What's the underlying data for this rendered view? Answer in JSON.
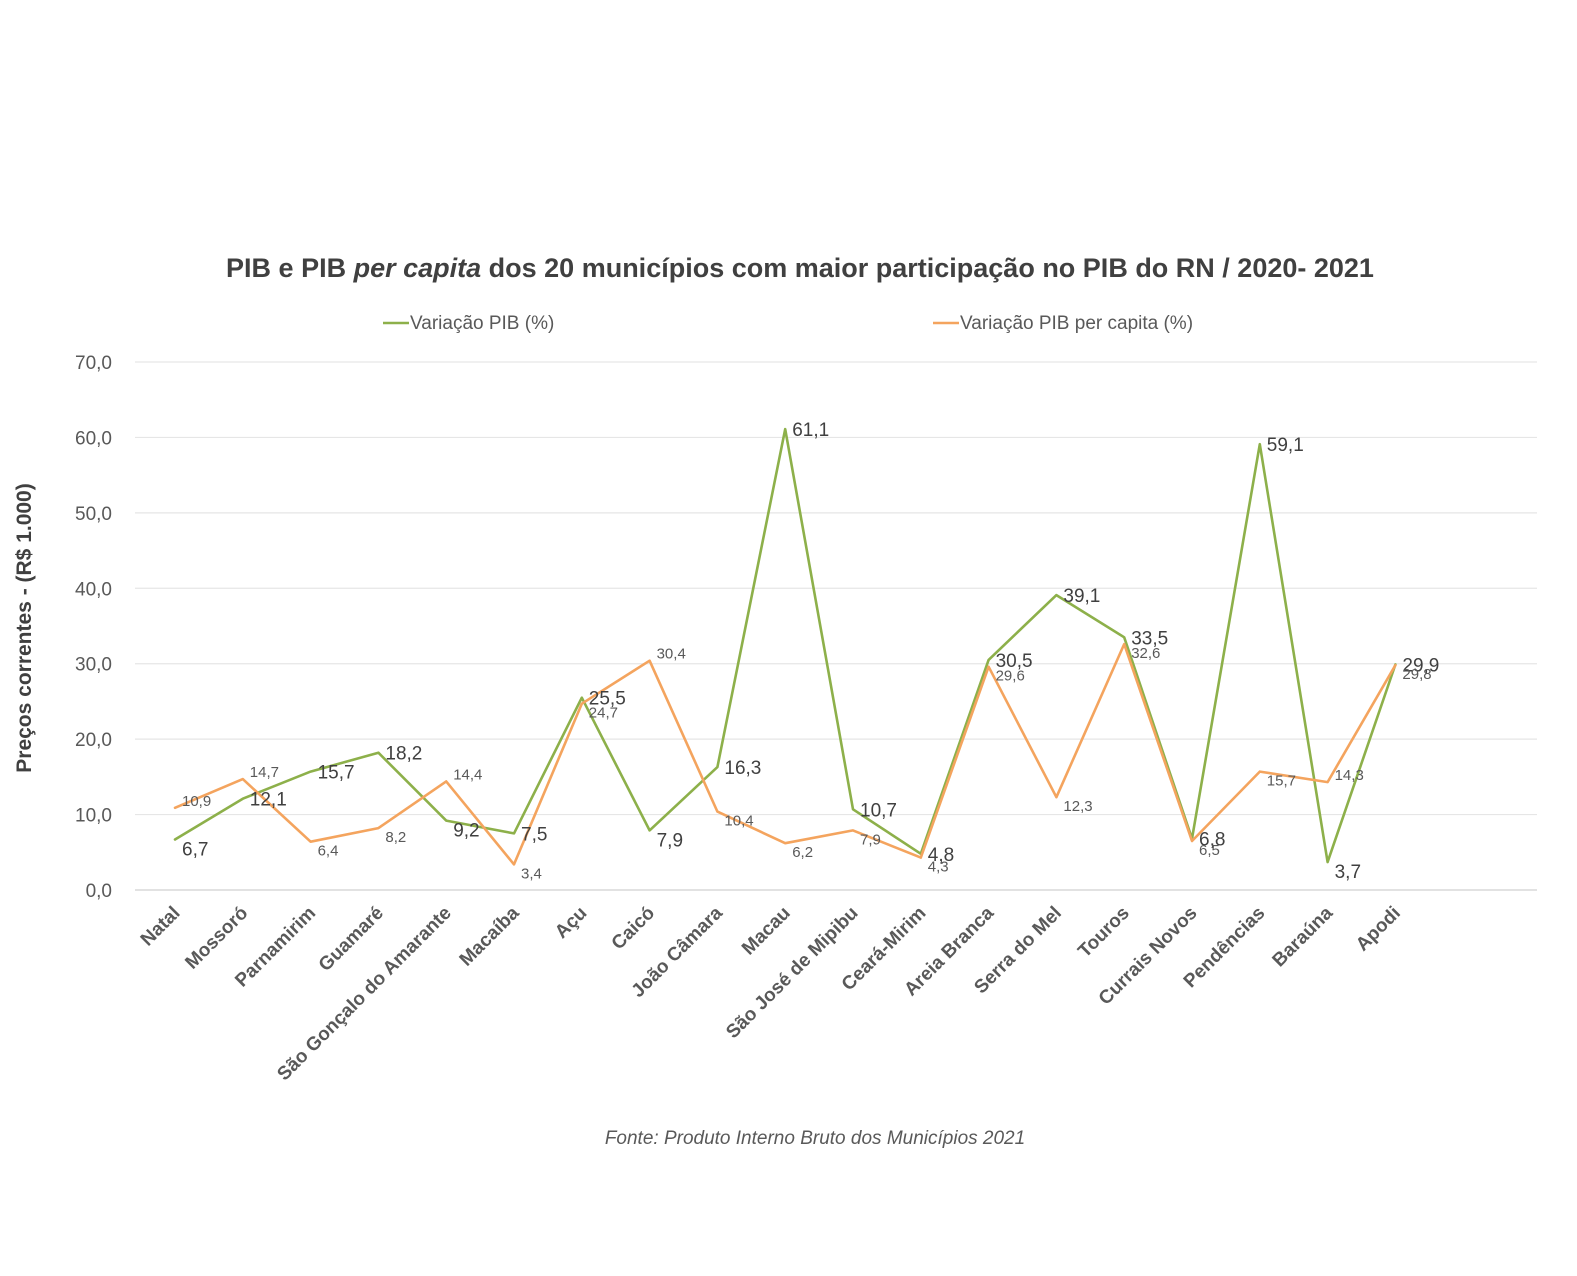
{
  "chart_data": {
    "type": "line",
    "title": {
      "part1": "PIB  e PIB ",
      "italic": "per capita",
      "part2": "  dos 20 municípios com maior participação no PIB do RN / 2020- 2021"
    },
    "ylabel": "Preços correntes - (R$ 1.000)",
    "ylim": [
      0,
      70
    ],
    "yticks": [
      "0,0",
      "10,0",
      "20,0",
      "30,0",
      "40,0",
      "50,0",
      "60,0",
      "70,0"
    ],
    "grid": true,
    "legend_position": "top",
    "categories": [
      "Natal",
      "Mossoró",
      "Parnamirim",
      "Guamaré",
      "São Gonçalo do Amarante",
      "Macaíba",
      "Açu",
      "Caicó",
      "João Câmara",
      "Macau",
      "São José de Mipibu",
      "Ceará-Mirim",
      "Areia Branca",
      "Serra do Mel",
      "Touros",
      "Currais Novos",
      "Pendências",
      "Baraúna",
      "Apodi"
    ],
    "series": [
      {
        "name": "Variação PIB (%)",
        "color": "#8db04a",
        "values": [
          6.7,
          12.1,
          15.7,
          18.2,
          9.2,
          7.5,
          25.5,
          7.9,
          16.3,
          61.1,
          10.7,
          4.8,
          30.5,
          39.1,
          33.5,
          6.8,
          59.1,
          3.7,
          29.9
        ],
        "labels": [
          "6,7",
          "12,1",
          "15,7",
          "18,2",
          "9,2",
          "7,5",
          "25,5",
          "7,9",
          "16,3",
          "61,1",
          "10,7",
          "4,8",
          "30,5",
          "39,1",
          "33,5",
          "6,8",
          "59,1",
          "3,7",
          "29,9"
        ]
      },
      {
        "name": "Variação PIB per capita (%)",
        "color": "#f4a45e",
        "values": [
          10.9,
          14.7,
          6.4,
          8.2,
          14.4,
          3.4,
          24.7,
          30.4,
          10.4,
          6.2,
          7.9,
          4.3,
          29.6,
          12.3,
          32.6,
          6.5,
          15.7,
          14.3,
          29.8
        ],
        "labels": [
          "10,9",
          "14,7",
          "6,4",
          "8,2",
          "14,4",
          "3,4",
          "24,7",
          "30,4",
          "10,4",
          "6,2",
          "7,9",
          "4,3",
          "29,6",
          "12,3",
          "32,6",
          "6,5",
          "15,7",
          "14,3",
          "29,8"
        ]
      }
    ],
    "source": "Fonte: Produto Interno Bruto dos Municípios 2021"
  }
}
